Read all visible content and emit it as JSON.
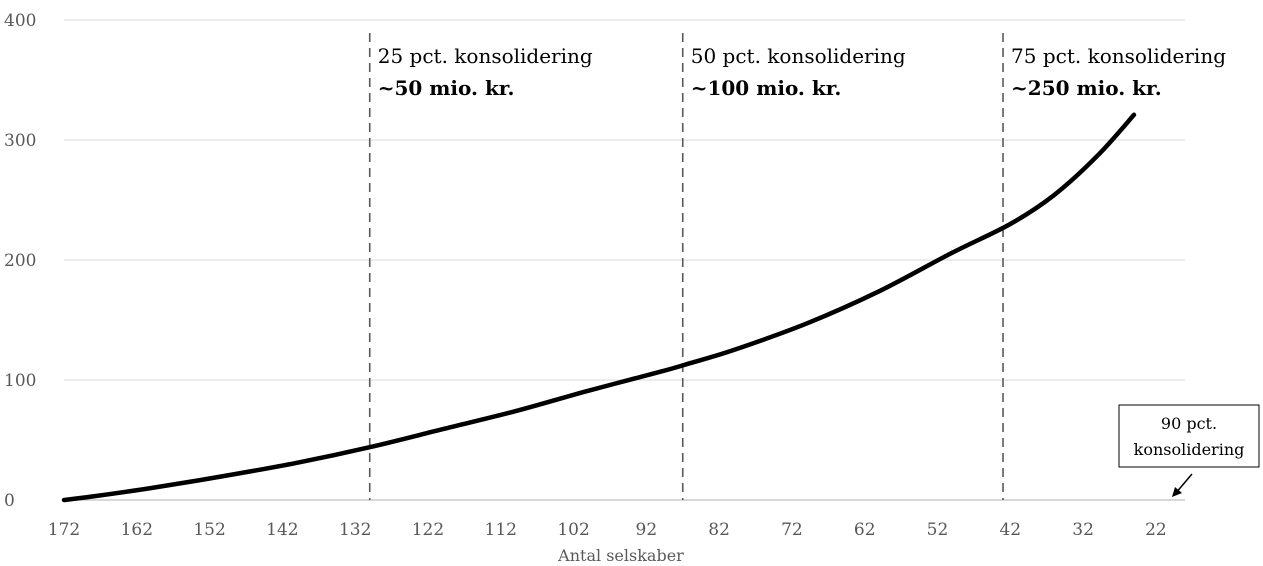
{
  "chart_data": {
    "type": "line",
    "title": "",
    "xlabel": "Antal selskaber",
    "ylabel": "",
    "x_reversed": true,
    "xlim": [
      172,
      18
    ],
    "ylim": [
      0,
      400
    ],
    "y_ticks": [
      0,
      100,
      200,
      300,
      400
    ],
    "x_ticks": [
      172,
      162,
      152,
      142,
      132,
      122,
      112,
      102,
      92,
      82,
      72,
      62,
      52,
      42,
      32,
      22
    ],
    "grid": "horizontal",
    "series": [
      {
        "color": "#000000",
        "x": [
          172,
          168,
          160,
          150,
          140,
          130,
          120,
          110,
          100,
          90,
          86,
          80,
          70,
          60,
          50,
          42,
          36,
          30,
          25
        ],
        "y": [
          0,
          3,
          10,
          20,
          31,
          44,
          59,
          74,
          91,
          107,
          114,
          125,
          147,
          174,
          206,
          230,
          254,
          287,
          321
        ]
      }
    ],
    "thresholds": [
      {
        "x": 130,
        "line1": "25 pct. konsolidering",
        "line2": "~50 mio. kr."
      },
      {
        "x": 87,
        "line1": "50 pct. konsolidering",
        "line2": "~100 mio. kr."
      },
      {
        "x": 43,
        "line1": "75 pct. konsolidering",
        "line2": "~250 mio. kr."
      }
    ],
    "callout": {
      "x": 18,
      "lines": [
        "90 pct.",
        "konsolidering"
      ]
    }
  }
}
